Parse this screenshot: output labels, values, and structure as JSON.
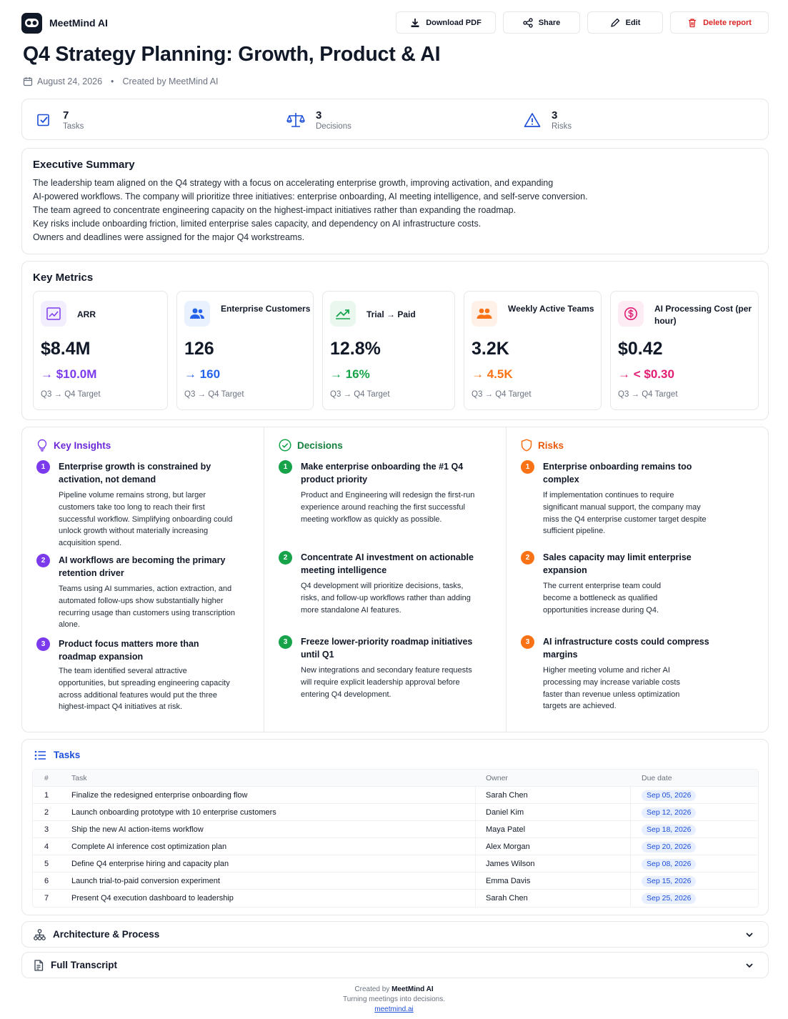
{
  "app": {
    "name": "MeetMind AI"
  },
  "toolbar": {
    "download": "Download PDF",
    "share": "Share",
    "edit": "Edit",
    "delete": "Delete report"
  },
  "report": {
    "title": "Q4 Strategy Planning: Growth, Product & AI",
    "date": "August 24, 2026",
    "created_by": "Created by MeetMind AI"
  },
  "stats": [
    {
      "value": "7",
      "label": "Tasks",
      "icon": "checkbox-icon"
    },
    {
      "value": "3",
      "label": "Decisions",
      "icon": "scale-icon"
    },
    {
      "value": "3",
      "label": "Risks",
      "icon": "warning-icon"
    }
  ],
  "summary": {
    "heading": "Executive Summary",
    "lines": [
      "The leadership team aligned on the Q4 strategy with a focus on accelerating enterprise growth, improving activation, and expanding",
      "AI-powered workflows. The company will prioritize three initiatives: enterprise onboarding, AI meeting intelligence, and self-serve conversion.",
      "The team agreed to concentrate engineering capacity on the highest-impact initiatives rather than expanding the roadmap.",
      "Key risks include onboarding friction, limited enterprise sales capacity, and dependency on AI infrastructure costs.",
      "Owners and deadlines were assigned for the major Q4 workstreams."
    ]
  },
  "metrics": {
    "heading": "Key Metrics",
    "items": [
      {
        "label": "ARR",
        "value": "$8.4M",
        "target": "→ $10.0M",
        "sub": "Q3 → Q4 Target",
        "color": "#7c3aed",
        "bg": "#f3eefe",
        "icon": "chart-icon"
      },
      {
        "label": "Enterprise Customers",
        "value": "126",
        "target": "→ 160",
        "sub": "Q3 → Q4 Target",
        "color": "#2563eb",
        "bg": "#eaf1fe",
        "icon": "users-icon"
      },
      {
        "label": "Trial → Paid",
        "value": "12.8%",
        "target": "→ 16%",
        "sub": "Q3 → Q4 Target",
        "color": "#16a34a",
        "bg": "#e9f7ee",
        "icon": "trend-up-icon"
      },
      {
        "label": "Weekly Active Teams",
        "value": "3.2K",
        "target": "→ 4.5K",
        "sub": "Q3 → Q4 Target",
        "color": "#f97316",
        "bg": "#fff1e7",
        "icon": "team-icon"
      },
      {
        "label": "AI Processing Cost (per hour)",
        "value": "$0.42",
        "target": "→ < $0.30",
        "sub": "Q3 → Q4 Target",
        "color": "#e11d74",
        "bg": "#fdecf3",
        "icon": "dollar-icon"
      }
    ]
  },
  "insights": {
    "heading": "Key Insights",
    "color": "#6d28d9",
    "badge": "#7c3aed",
    "items": [
      {
        "n": "1",
        "title": "Enterprise growth is constrained by activation, not demand",
        "body": "Pipeline volume remains strong, but larger customers take too long to reach their first successful workflow. Simplifying onboarding could unlock growth without materially increasing acquisition spend."
      },
      {
        "n": "2",
        "title": "AI workflows are becoming the primary retention driver",
        "body": "Teams using AI summaries, action extraction, and automated follow-ups show substantially higher recurring usage than customers using transcription alone."
      },
      {
        "n": "3",
        "title": "Product focus matters more than roadmap expansion",
        "body": "The team identified several attractive opportunities, but spreading engineering capacity across additional features would put the three highest-impact Q4 initiatives at risk."
      }
    ]
  },
  "decisions": {
    "heading": "Decisions",
    "color": "#15803d",
    "badge": "#16a34a",
    "items": [
      {
        "n": "1",
        "title": "Make enterprise onboarding the #1 Q4 product priority",
        "body": "Product and Engineering will redesign the first-run experience around reaching the first successful meeting workflow as quickly as possible."
      },
      {
        "n": "2",
        "title": "Concentrate AI investment on actionable meeting intelligence",
        "body": "Q4 development will prioritize decisions, tasks, risks, and follow-up workflows rather than adding more standalone AI features."
      },
      {
        "n": "3",
        "title": "Freeze lower-priority roadmap initiatives until Q1",
        "body": "New integrations and secondary feature requests will require explicit leadership approval before entering Q4 development."
      }
    ]
  },
  "risks": {
    "heading": "Risks",
    "color": "#ea580c",
    "badge": "#f97316",
    "items": [
      {
        "n": "1",
        "title": "Enterprise onboarding remains too complex",
        "body": "If implementation continues to require significant manual support, the company may miss the Q4 enterprise customer target despite sufficient pipeline."
      },
      {
        "n": "2",
        "title": "Sales capacity may limit enterprise expansion",
        "body": "The current enterprise team could become a bottleneck as qualified opportunities increase during Q4."
      },
      {
        "n": "3",
        "title": "AI infrastructure costs could compress margins",
        "body": "Higher meeting volume and richer AI processing may increase variable costs faster than revenue unless optimization targets are achieved."
      }
    ]
  },
  "tasks": {
    "heading": "Tasks",
    "columns": [
      "#",
      "Task",
      "Owner",
      "Due date"
    ],
    "rows": [
      {
        "n": "1",
        "task": "Finalize the redesigned enterprise onboarding flow",
        "owner": "Sarah Chen",
        "due": "Sep 05, 2026"
      },
      {
        "n": "2",
        "task": "Launch onboarding prototype with 10 enterprise customers",
        "owner": "Daniel Kim",
        "due": "Sep 12, 2026"
      },
      {
        "n": "3",
        "task": "Ship the new AI action-items workflow",
        "owner": "Maya Patel",
        "due": "Sep 18, 2026"
      },
      {
        "n": "4",
        "task": "Complete AI inference cost optimization plan",
        "owner": "Alex Morgan",
        "due": "Sep 20, 2026"
      },
      {
        "n": "5",
        "task": "Define Q4 enterprise hiring and capacity plan",
        "owner": "James Wilson",
        "due": "Sep 08, 2026"
      },
      {
        "n": "6",
        "task": "Launch trial-to-paid conversion experiment",
        "owner": "Emma Davis",
        "due": "Sep 15, 2026"
      },
      {
        "n": "7",
        "task": "Present Q4 execution dashboard to leadership",
        "owner": "Sarah Chen",
        "due": "Sep 25, 2026"
      }
    ]
  },
  "sections": {
    "architecture": "Architecture & Process",
    "transcript": "Full Transcript"
  },
  "footer": {
    "prefix": "Created by",
    "brand": "MeetMind AI",
    "tagline": "Turning meetings into decisions.",
    "link": "meetmind.ai"
  }
}
